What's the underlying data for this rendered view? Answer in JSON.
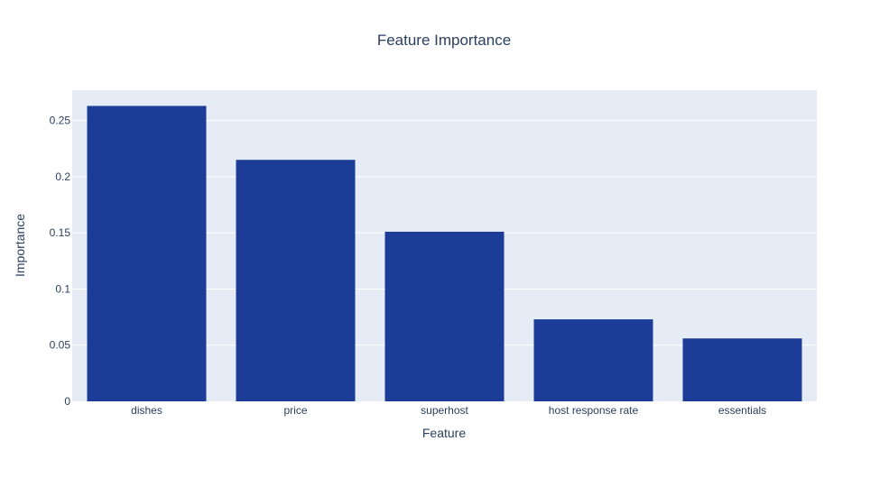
{
  "chart_data": {
    "type": "bar",
    "title": "Feature Importance",
    "xlabel": "Feature",
    "ylabel": "Importance",
    "categories": [
      "dishes",
      "price",
      "superhost",
      "host response rate",
      "essentials"
    ],
    "values": [
      0.263,
      0.215,
      0.151,
      0.073,
      0.056
    ],
    "ylim": [
      0,
      0.277
    ],
    "yticks": [
      0,
      0.05,
      0.1,
      0.15,
      0.2,
      0.25
    ],
    "ytick_labels": [
      "0",
      "0.05",
      "0.1",
      "0.15",
      "0.2",
      "0.25"
    ],
    "grid": true,
    "legend": "none",
    "colors": {
      "bar": "#1b3d98",
      "plot_bg": "#e5ecf6",
      "grid": "#ffffff",
      "text": "#2a3f5f"
    }
  }
}
